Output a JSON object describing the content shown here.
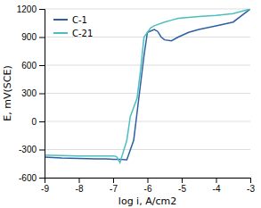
{
  "chart_data": {
    "type": "line",
    "xlabel": "log i, A/cm2",
    "ylabel": "E, mV(SCE)",
    "xlim": [
      -9,
      -3
    ],
    "ylim": [
      -600,
      1200
    ],
    "xticks": [
      -9,
      -8,
      -7,
      -6,
      -5,
      -4,
      -3
    ],
    "yticks": [
      -600,
      -300,
      0,
      300,
      600,
      900,
      1200
    ],
    "grid": "y",
    "legend": "upper left",
    "series": [
      {
        "name": "C-1",
        "color": "#2E5FA3",
        "x": [
          -9,
          -8.5,
          -8.0,
          -7.5,
          -7.2,
          -7.0,
          -6.8,
          -6.6,
          -6.6,
          -6.4,
          -6.3,
          -6.2,
          -6.1,
          -6.0,
          -6.0,
          -5.8,
          -5.7,
          -5.6,
          -5.5,
          -5.3,
          -5.1,
          -4.8,
          -4.5,
          -4.0,
          -3.5,
          -3.0
        ],
        "values": [
          -380,
          -390,
          -395,
          -400,
          -400,
          -405,
          -405,
          -410,
          -410,
          -200,
          100,
          400,
          700,
          950,
          950,
          980,
          960,
          900,
          870,
          860,
          900,
          950,
          980,
          1020,
          1060,
          1200
        ]
      },
      {
        "name": "C-21",
        "color": "#4BBFBF",
        "x": [
          -9,
          -8.5,
          -8.0,
          -7.5,
          -7.2,
          -7.0,
          -6.9,
          -6.8,
          -6.8,
          -6.6,
          -6.5,
          -6.4,
          -6.3,
          -6.2,
          -6.1,
          -6.0,
          -5.9,
          -5.8,
          -5.8,
          -5.5,
          -5.3,
          -5.1,
          -4.8,
          -4.5,
          -4.0,
          -3.5,
          -3.0
        ],
        "values": [
          -360,
          -365,
          -368,
          -368,
          -368,
          -370,
          -375,
          -440,
          -440,
          -200,
          50,
          150,
          250,
          550,
          900,
          950,
          1000,
          1020,
          1020,
          1060,
          1080,
          1100,
          1110,
          1120,
          1130,
          1150,
          1200
        ]
      }
    ]
  }
}
